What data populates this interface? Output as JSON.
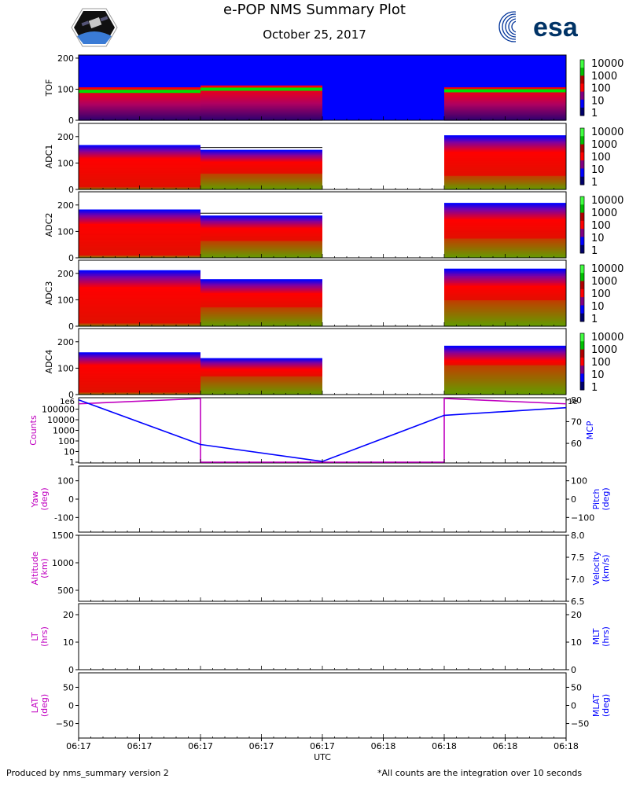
{
  "header": {
    "title": "e-POP NMS Summary Plot",
    "date": "October 25, 2017",
    "logo_text": "esa"
  },
  "footer": {
    "left": "Produced by nms_summary version 2",
    "right": "*All counts are the integration over 10 seconds"
  },
  "colors": {
    "magenta": "#c000c0",
    "blue": "#0000ff",
    "spec_blue": "#0000ff",
    "spec_red": "#ff0000",
    "spec_green": "#00e000",
    "spec_dark": "#2a0070"
  },
  "chart_data": {
    "x_label": "UTC",
    "x_ticks": [
      "06:17",
      "06:17",
      "06:17",
      "06:17",
      "06:17",
      "06:18",
      "06:18",
      "06:18",
      "06:18"
    ],
    "colorbar_ticks": [
      "10000",
      "1000",
      "100",
      "10",
      "1"
    ],
    "spectrograms": [
      {
        "name": "TOF",
        "type": "heatmap",
        "ylim": [
          0,
          210
        ],
        "yticks": [
          0,
          100,
          200
        ],
        "blocks": [
          {
            "x0": 0,
            "x1": 2,
            "ytop": 106,
            "green_band": 93,
            "fill_bg": true
          },
          {
            "x0": 2,
            "x1": 4,
            "ytop": 112,
            "green_band": 100,
            "fill_bg": true
          },
          {
            "x0": 4,
            "x1": 6,
            "ytop": 0,
            "green_band": 0,
            "fill_bg": true
          },
          {
            "x0": 6,
            "x1": 8,
            "ytop": 106,
            "green_band": 95,
            "fill_bg": true
          }
        ]
      },
      {
        "name": "ADC1",
        "type": "heatmap",
        "ylim": [
          0,
          250
        ],
        "yticks": [
          0,
          100,
          200
        ],
        "blocks": [
          {
            "x0": 0,
            "x1": 2,
            "ytop": 168,
            "green_frac": 0.05,
            "fill_bg": false
          },
          {
            "x0": 2,
            "x1": 4,
            "ytop": 150,
            "green_frac": 0.4,
            "fill_bg": false
          },
          {
            "x0": 6,
            "x1": 8,
            "ytop": 205,
            "green_frac": 0.25,
            "fill_bg": false
          }
        ]
      },
      {
        "name": "ADC2",
        "type": "heatmap",
        "ylim": [
          0,
          250
        ],
        "yticks": [
          0,
          100,
          200
        ],
        "blocks": [
          {
            "x0": 0,
            "x1": 2,
            "ytop": 183,
            "green_frac": 0.05,
            "fill_bg": false
          },
          {
            "x0": 2,
            "x1": 4,
            "ytop": 160,
            "green_frac": 0.4,
            "fill_bg": false
          },
          {
            "x0": 6,
            "x1": 8,
            "ytop": 208,
            "green_frac": 0.35,
            "fill_bg": false
          }
        ]
      },
      {
        "name": "ADC3",
        "type": "heatmap",
        "ylim": [
          0,
          250
        ],
        "yticks": [
          0,
          100,
          200
        ],
        "blocks": [
          {
            "x0": 0,
            "x1": 2,
            "ytop": 212,
            "green_frac": 0.05,
            "fill_bg": false
          },
          {
            "x0": 2,
            "x1": 4,
            "ytop": 178,
            "green_frac": 0.4,
            "fill_bg": false
          },
          {
            "x0": 6,
            "x1": 8,
            "ytop": 218,
            "green_frac": 0.45,
            "fill_bg": false
          }
        ]
      },
      {
        "name": "ADC4",
        "type": "heatmap",
        "ylim": [
          0,
          250
        ],
        "yticks": [
          0,
          100,
          200
        ],
        "blocks": [
          {
            "x0": 0,
            "x1": 2,
            "ytop": 160,
            "green_frac": 0.05,
            "fill_bg": false
          },
          {
            "x0": 2,
            "x1": 4,
            "ytop": 138,
            "green_frac": 0.5,
            "fill_bg": false
          },
          {
            "x0": 6,
            "x1": 8,
            "ytop": 185,
            "green_frac": 0.6,
            "fill_bg": false
          }
        ]
      }
    ],
    "counts_panel": {
      "type": "line",
      "left_label": "Counts",
      "right_label": "MCP",
      "left_ticks": [
        "1",
        "10",
        "100",
        "1000",
        "10000",
        "100000"
      ],
      "left_top_label": "1e6",
      "right_ticks": [
        "60",
        "70",
        "80"
      ],
      "right_top_label": "1e",
      "counts_series": {
        "name": "Counts",
        "x": [
          0,
          2,
          2,
          6,
          6,
          8
        ],
        "log10_y": [
          5.5,
          6.0,
          0.0,
          0.0,
          6.0,
          5.5
        ]
      },
      "mcp_series": {
        "name": "MCP",
        "x": [
          0,
          2,
          4,
          6,
          8
        ],
        "y": [
          80.0,
          59.5,
          51.7,
          72.9,
          76.4
        ],
        "ylim": [
          51,
          81
        ]
      }
    },
    "empty_panels": [
      {
        "left_label": "Yaw\n(deg)",
        "right_label": "Pitch\n(deg)",
        "left_ticks": [
          "-100",
          "0",
          "100"
        ],
        "left_range": [
          -180,
          180
        ],
        "right_ticks": [
          "−100",
          "0",
          "100"
        ],
        "right_range": [
          -180,
          180
        ]
      },
      {
        "left_label": "Altitude\n(km)",
        "right_label": "Velocity\n(km/s)",
        "left_ticks": [
          "500",
          "1000",
          "1500"
        ],
        "left_range": [
          300,
          1500
        ],
        "right_ticks": [
          "6.5",
          "7.0",
          "7.5",
          "8.0"
        ],
        "right_range": [
          6.5,
          8.0
        ]
      },
      {
        "left_label": "LT\n(hrs)",
        "right_label": "MLT\n(hrs)",
        "left_ticks": [
          "0",
          "10",
          "20"
        ],
        "left_range": [
          0,
          24
        ],
        "right_ticks": [
          "0",
          "10",
          "20"
        ],
        "right_range": [
          0,
          24
        ]
      },
      {
        "left_label": "LAT\n(deg)",
        "right_label": "MLAT\n(deg)",
        "left_ticks": [
          "−50",
          "0",
          "50"
        ],
        "left_range": [
          -90,
          90
        ],
        "right_ticks": [
          "−50",
          "0",
          "50"
        ],
        "right_range": [
          -90,
          90
        ]
      }
    ]
  }
}
